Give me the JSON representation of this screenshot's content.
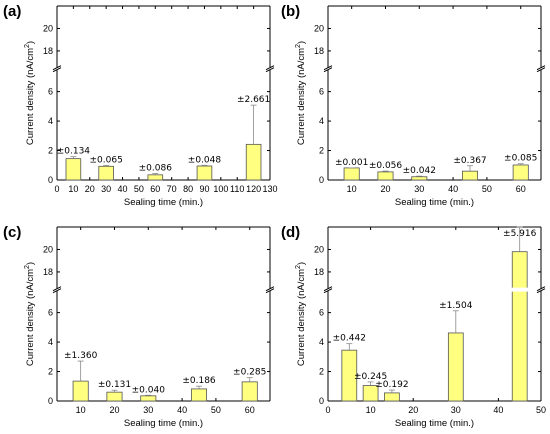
{
  "colors": {
    "bar_fill": "#ffff80",
    "bar_stroke": "#555555",
    "axis": "#000000",
    "error_bar": "#888888"
  },
  "chart_data": [
    {
      "panel": "(a)",
      "type": "bar",
      "xlabel": "Sealing time (min.)",
      "ylabel_main": "Current density (nA/cm",
      "ylabel_sup": "2",
      "ylabel_close": ")",
      "x_axis": "numeric",
      "xlim": [
        0,
        130
      ],
      "xticks": [
        0,
        10,
        20,
        30,
        40,
        50,
        60,
        70,
        80,
        90,
        100,
        110,
        120,
        130
      ],
      "ylim_lower": [
        0,
        7.5
      ],
      "yticks_lower": [
        0,
        2,
        4,
        6
      ],
      "ylim_upper": [
        16.5,
        22
      ],
      "yticks_upper": [
        18,
        20
      ],
      "bar_width": 9,
      "x": [
        10,
        30,
        60,
        90,
        120
      ],
      "values": [
        1.45,
        0.93,
        0.35,
        0.95,
        2.42
      ],
      "errors": [
        0.134,
        0.065,
        0.086,
        0.048,
        2.661
      ],
      "labels": [
        "±0.134",
        "±0.065",
        "±0.086",
        "±0.048",
        "±2.661"
      ]
    },
    {
      "panel": "(b)",
      "type": "bar",
      "xlabel": "Sealing time (min.)",
      "ylabel_main": "Current density (nA/cm",
      "ylabel_sup": "2",
      "ylabel_close": ")",
      "x_axis": "numeric",
      "xlim": [
        3,
        66
      ],
      "xticks": [
        10,
        20,
        30,
        40,
        50,
        60
      ],
      "ylim_lower": [
        0,
        7.5
      ],
      "yticks_lower": [
        0,
        2,
        4,
        6
      ],
      "ylim_upper": [
        16.5,
        22
      ],
      "yticks_upper": [
        18,
        20
      ],
      "bar_width": 4.5,
      "x": [
        10,
        20,
        30,
        45,
        60
      ],
      "values": [
        0.82,
        0.55,
        0.22,
        0.6,
        1.02
      ],
      "errors": [
        0.001,
        0.056,
        0.042,
        0.367,
        0.085
      ],
      "labels": [
        "±0.001",
        "±0.056",
        "±0.042",
        "±0.367",
        "±0.085"
      ]
    },
    {
      "panel": "(c)",
      "type": "bar",
      "xlabel": "Sealing time (min.)",
      "ylabel_main": "Current density (nA/cm",
      "ylabel_sup": "2",
      "ylabel_close": ")",
      "x_axis": "numeric",
      "xlim": [
        3,
        66
      ],
      "xticks": [
        10,
        20,
        30,
        40,
        50,
        60
      ],
      "ylim_lower": [
        0,
        7.5
      ],
      "yticks_lower": [
        0,
        2,
        4,
        6
      ],
      "ylim_upper": [
        16.5,
        22
      ],
      "yticks_upper": [
        18,
        20
      ],
      "bar_width": 4.5,
      "x": [
        10,
        20,
        30,
        45,
        60
      ],
      "values": [
        1.35,
        0.6,
        0.35,
        0.82,
        1.3
      ],
      "errors": [
        1.36,
        0.131,
        0.04,
        0.186,
        0.285
      ],
      "labels": [
        "±1.360",
        "±0.131",
        "±0.040",
        "±0.186",
        "±0.285"
      ]
    },
    {
      "panel": "(d)",
      "type": "bar",
      "xlabel": "Sealing time (min.)",
      "ylabel_main": "Current density (nA/cm",
      "ylabel_sup": "2",
      "ylabel_close": ")",
      "x_axis": "numeric",
      "xlim": [
        0,
        50
      ],
      "xticks": [
        0,
        10,
        20,
        30,
        40,
        50
      ],
      "ylim_lower": [
        0,
        7.5
      ],
      "yticks_lower": [
        0,
        2,
        4,
        6
      ],
      "ylim_upper": [
        16.5,
        22
      ],
      "yticks_upper": [
        18,
        20
      ],
      "bar_width": 3.5,
      "x": [
        5,
        10,
        15,
        30,
        45
      ],
      "values": [
        3.45,
        1.05,
        0.55,
        4.62,
        19.8
      ],
      "errors": [
        0.442,
        0.245,
        0.192,
        1.504,
        5.916
      ],
      "labels": [
        "±0.442",
        "±0.245",
        "±0.192",
        "±1.504",
        "±5.916"
      ]
    }
  ]
}
